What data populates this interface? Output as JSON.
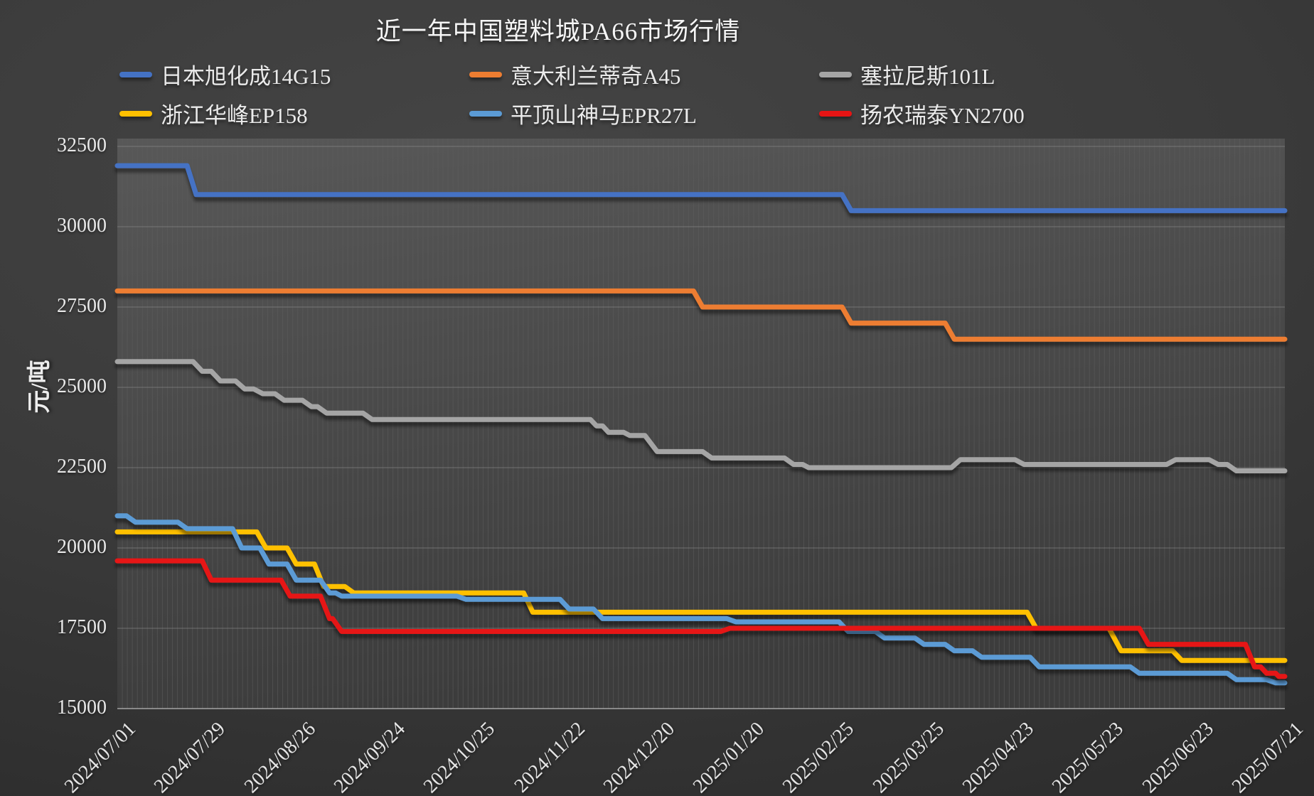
{
  "title": "近一年中国塑料城PA66市场行情",
  "y_axis": {
    "label": "元/吨",
    "ticks": [
      32500,
      30000,
      27500,
      25000,
      22500,
      20000,
      17500,
      15000
    ],
    "min": 15000,
    "max": 32500
  },
  "x_axis": {
    "ticks": [
      "2024/07/01",
      "2024/07/29",
      "2024/08/26",
      "2024/09/24",
      "2024/10/25",
      "2024/11/22",
      "2024/12/20",
      "2025/01/20",
      "2025/02/25",
      "2025/03/25",
      "2025/04/23",
      "2025/05/23",
      "2025/06/23",
      "2025/07/21"
    ]
  },
  "chart_data": {
    "type": "line",
    "title": "近一年中国塑料城PA66市场行情",
    "xlabel": "",
    "ylabel": "元/吨",
    "ylim": [
      15000,
      32500
    ],
    "x_range": [
      "2024-07-01",
      "2025-07-21"
    ],
    "grid": "horizontal-major-plus-daily-vertical-stripes",
    "legend_position": "top",
    "series": [
      {
        "name": "日本旭化成14G15",
        "color": "#4472C4",
        "points": [
          [
            "2024-07-01",
            31900
          ],
          [
            "2024-07-24",
            31900
          ],
          [
            "2024-07-27",
            31000
          ],
          [
            "2025-02-25",
            31000
          ],
          [
            "2025-02-28",
            30500
          ],
          [
            "2025-07-21",
            30500
          ]
        ]
      },
      {
        "name": "意大利兰蒂奇A45",
        "color": "#ED7D31",
        "points": [
          [
            "2024-07-01",
            28000
          ],
          [
            "2025-01-07",
            28000
          ],
          [
            "2025-01-10",
            27500
          ],
          [
            "2025-02-25",
            27500
          ],
          [
            "2025-02-28",
            27000
          ],
          [
            "2025-03-31",
            27000
          ],
          [
            "2025-04-03",
            26500
          ],
          [
            "2025-07-21",
            26500
          ]
        ]
      },
      {
        "name": "塞拉尼斯101L",
        "color": "#A5A5A5",
        "points": [
          [
            "2024-07-01",
            25800
          ],
          [
            "2024-07-26",
            25800
          ],
          [
            "2024-07-29",
            25500
          ],
          [
            "2024-08-01",
            25500
          ],
          [
            "2024-08-04",
            25200
          ],
          [
            "2024-08-09",
            25200
          ],
          [
            "2024-08-12",
            24950
          ],
          [
            "2024-08-15",
            24950
          ],
          [
            "2024-08-18",
            24800
          ],
          [
            "2024-08-22",
            24800
          ],
          [
            "2024-08-25",
            24600
          ],
          [
            "2024-08-31",
            24600
          ],
          [
            "2024-09-03",
            24400
          ],
          [
            "2024-09-05",
            24400
          ],
          [
            "2024-09-08",
            24200
          ],
          [
            "2024-09-20",
            24200
          ],
          [
            "2024-09-23",
            24000
          ],
          [
            "2024-12-04",
            24000
          ],
          [
            "2024-12-06",
            23800
          ],
          [
            "2024-12-08",
            23800
          ],
          [
            "2024-12-10",
            23600
          ],
          [
            "2024-12-15",
            23600
          ],
          [
            "2024-12-17",
            23500
          ],
          [
            "2024-12-22",
            23500
          ],
          [
            "2024-12-26",
            23000
          ],
          [
            "2025-01-10",
            23000
          ],
          [
            "2025-01-13",
            22800
          ],
          [
            "2025-02-06",
            22800
          ],
          [
            "2025-02-09",
            22600
          ],
          [
            "2025-02-12",
            22600
          ],
          [
            "2025-02-14",
            22500
          ],
          [
            "2025-04-02",
            22500
          ],
          [
            "2025-04-05",
            22750
          ],
          [
            "2025-04-23",
            22750
          ],
          [
            "2025-04-26",
            22600
          ],
          [
            "2025-06-12",
            22600
          ],
          [
            "2025-06-15",
            22750
          ],
          [
            "2025-06-26",
            22750
          ],
          [
            "2025-06-29",
            22600
          ],
          [
            "2025-07-02",
            22600
          ],
          [
            "2025-07-05",
            22400
          ],
          [
            "2025-07-21",
            22400
          ]
        ]
      },
      {
        "name": "浙江华峰EP158",
        "color": "#FFC000",
        "points": [
          [
            "2024-07-01",
            20500
          ],
          [
            "2024-08-16",
            20500
          ],
          [
            "2024-08-19",
            20000
          ],
          [
            "2024-08-26",
            20000
          ],
          [
            "2024-08-29",
            19500
          ],
          [
            "2024-09-04",
            19500
          ],
          [
            "2024-09-07",
            18800
          ],
          [
            "2024-09-14",
            18800
          ],
          [
            "2024-09-17",
            18600
          ],
          [
            "2024-11-12",
            18600
          ],
          [
            "2024-11-15",
            18000
          ],
          [
            "2025-04-27",
            18000
          ],
          [
            "2025-04-30",
            17500
          ],
          [
            "2025-05-24",
            17500
          ],
          [
            "2025-05-28",
            16800
          ],
          [
            "2025-06-14",
            16800
          ],
          [
            "2025-06-17",
            16500
          ],
          [
            "2025-07-21",
            16500
          ]
        ]
      },
      {
        "name": "平顶山神马EPR27L",
        "color": "#5B9BD5",
        "points": [
          [
            "2024-07-01",
            21000
          ],
          [
            "2024-07-04",
            21000
          ],
          [
            "2024-07-07",
            20800
          ],
          [
            "2024-07-21",
            20800
          ],
          [
            "2024-07-24",
            20600
          ],
          [
            "2024-08-08",
            20600
          ],
          [
            "2024-08-11",
            20000
          ],
          [
            "2024-08-17",
            20000
          ],
          [
            "2024-08-20",
            19500
          ],
          [
            "2024-08-26",
            19500
          ],
          [
            "2024-08-29",
            19000
          ],
          [
            "2024-09-06",
            19000
          ],
          [
            "2024-09-09",
            18600
          ],
          [
            "2024-09-11",
            18600
          ],
          [
            "2024-09-13",
            18500
          ],
          [
            "2024-10-21",
            18500
          ],
          [
            "2024-10-24",
            18400
          ],
          [
            "2024-11-24",
            18400
          ],
          [
            "2024-11-27",
            18100
          ],
          [
            "2024-12-05",
            18100
          ],
          [
            "2024-12-08",
            17800
          ],
          [
            "2025-01-18",
            17800
          ],
          [
            "2025-01-21",
            17700
          ],
          [
            "2025-02-24",
            17700
          ],
          [
            "2025-02-27",
            17400
          ],
          [
            "2025-03-08",
            17400
          ],
          [
            "2025-03-11",
            17200
          ],
          [
            "2025-03-21",
            17200
          ],
          [
            "2025-03-24",
            17000
          ],
          [
            "2025-03-31",
            17000
          ],
          [
            "2025-04-03",
            16800
          ],
          [
            "2025-04-09",
            16800
          ],
          [
            "2025-04-12",
            16600
          ],
          [
            "2025-04-28",
            16600
          ],
          [
            "2025-05-01",
            16300
          ],
          [
            "2025-05-31",
            16300
          ],
          [
            "2025-06-03",
            16100
          ],
          [
            "2025-07-02",
            16100
          ],
          [
            "2025-07-05",
            15900
          ],
          [
            "2025-07-15",
            15900
          ],
          [
            "2025-07-18",
            15800
          ],
          [
            "2025-07-21",
            15800
          ]
        ]
      },
      {
        "name": "扬农瑞泰YN2700",
        "color": "#E61414",
        "points": [
          [
            "2024-07-01",
            19600
          ],
          [
            "2024-07-29",
            19600
          ],
          [
            "2024-08-01",
            19000
          ],
          [
            "2024-08-24",
            19000
          ],
          [
            "2024-08-27",
            18500
          ],
          [
            "2024-09-06",
            18500
          ],
          [
            "2024-09-09",
            17800
          ],
          [
            "2024-09-10",
            17800
          ],
          [
            "2024-09-13",
            17400
          ],
          [
            "2025-01-16",
            17400
          ],
          [
            "2025-01-19",
            17500
          ],
          [
            "2025-06-03",
            17500
          ],
          [
            "2025-06-06",
            17000
          ],
          [
            "2025-07-08",
            17000
          ],
          [
            "2025-07-11",
            16300
          ],
          [
            "2025-07-13",
            16300
          ],
          [
            "2025-07-15",
            16100
          ],
          [
            "2025-07-18",
            16100
          ],
          [
            "2025-07-19",
            16000
          ],
          [
            "2025-07-21",
            16000
          ]
        ]
      }
    ]
  }
}
